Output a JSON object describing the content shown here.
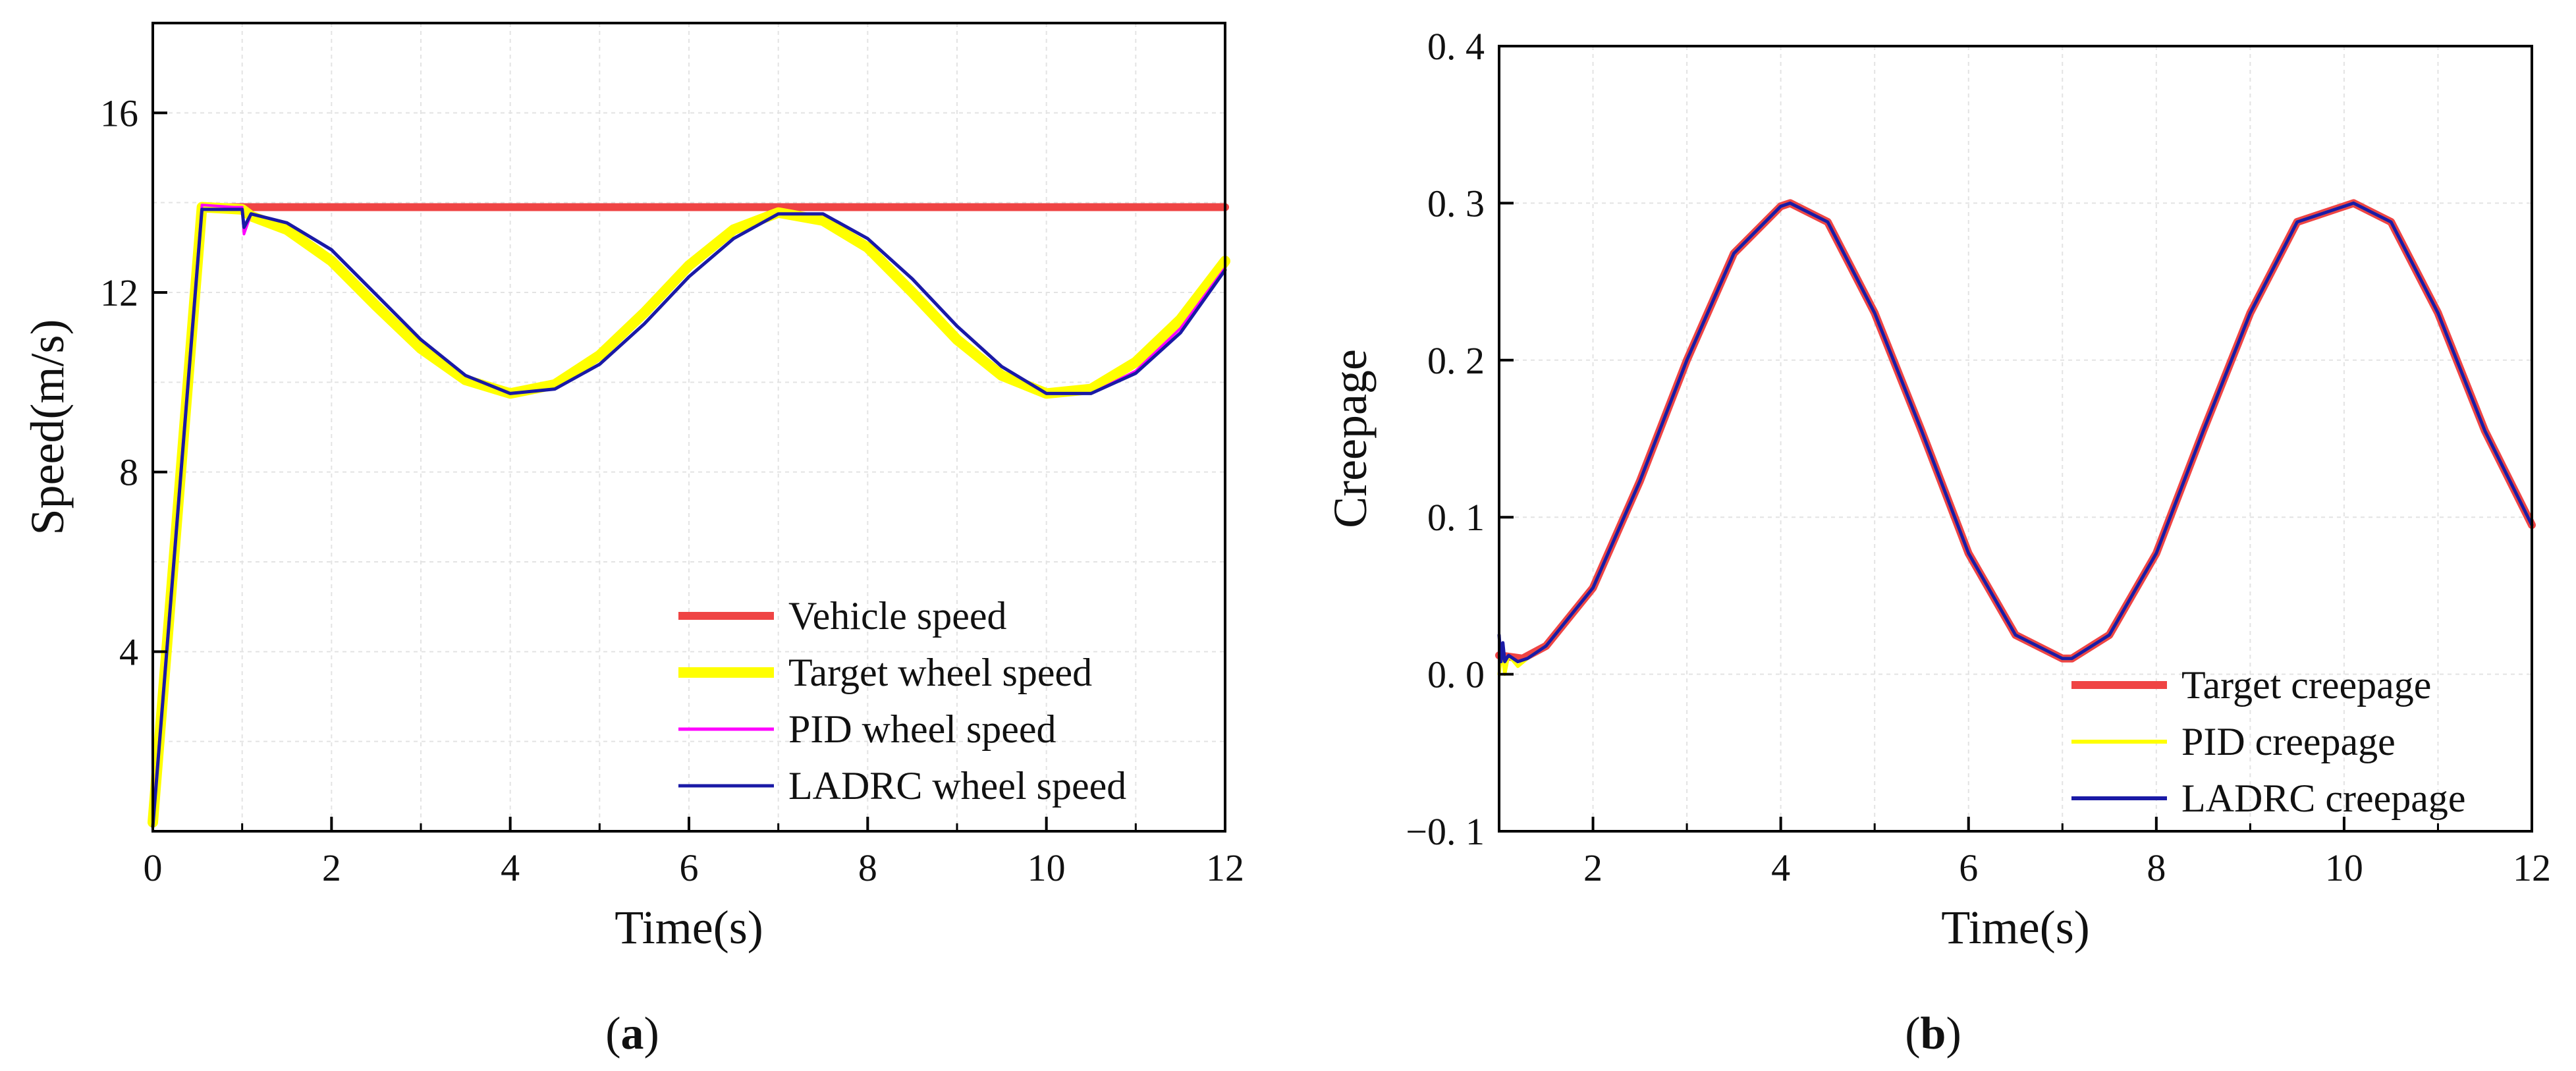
{
  "chart_data": [
    {
      "type": "line",
      "panel_label": "a",
      "xlabel": "Time(s)",
      "ylabel": "Speed(m/s)",
      "xlim": [
        0,
        12
      ],
      "ylim": [
        0,
        18
      ],
      "grid": true,
      "legend_position": "bottom-right",
      "xticks": [
        0,
        2,
        4,
        6,
        8,
        10,
        12
      ],
      "xtick_labels": [
        "0",
        "2",
        "4",
        "6",
        "8",
        "10",
        "12"
      ],
      "yticks": [
        4,
        8,
        12,
        16
      ],
      "ytick_labels": [
        "4",
        "8",
        "12",
        "16"
      ],
      "series": [
        {
          "name": "Vehicle speed",
          "color": "#ef4444",
          "x": [
            0.6,
            1.0,
            2.0,
            4.0,
            6.0,
            8.0,
            10.0,
            12.0
          ],
          "y": [
            13.9,
            13.9,
            13.9,
            13.9,
            13.9,
            13.9,
            13.9,
            13.9
          ]
        },
        {
          "name": "Target wheel speed",
          "color": "#ffff00",
          "x": [
            0,
            0.55,
            1.0,
            1.1,
            1.5,
            2.0,
            2.5,
            3.0,
            3.5,
            4.0,
            4.5,
            5.0,
            5.5,
            6.0,
            6.5,
            7.0,
            7.5,
            8.0,
            8.5,
            9.0,
            9.5,
            10.0,
            10.5,
            11.0,
            11.5,
            12.0
          ],
          "y": [
            0.2,
            13.9,
            13.85,
            13.7,
            13.4,
            12.7,
            11.7,
            10.75,
            10.05,
            9.75,
            9.95,
            10.6,
            11.55,
            12.6,
            13.4,
            13.78,
            13.6,
            13.0,
            12.0,
            10.95,
            10.15,
            9.75,
            9.85,
            10.45,
            11.4,
            12.7
          ]
        },
        {
          "name": "PID wheel speed",
          "color": "#ff00ff",
          "x": [
            0,
            0.55,
            0.9,
            1.0,
            1.02,
            1.1,
            1.5,
            2.0,
            2.5,
            3.0,
            3.5,
            4.0,
            4.5,
            5.0,
            5.5,
            6.0,
            6.5,
            7.0,
            7.5,
            8.0,
            8.5,
            9.0,
            9.5,
            10.0,
            10.5,
            11.0,
            11.5,
            12.0
          ],
          "y": [
            0.2,
            13.95,
            13.9,
            13.9,
            13.3,
            13.75,
            13.55,
            12.95,
            11.95,
            10.95,
            10.15,
            9.75,
            9.85,
            10.4,
            11.3,
            12.35,
            13.2,
            13.75,
            13.75,
            13.2,
            12.3,
            11.25,
            10.35,
            9.75,
            9.75,
            10.25,
            11.2,
            12.55
          ]
        },
        {
          "name": "LADRC wheel speed",
          "color": "#1a1aa6",
          "x": [
            0,
            0.55,
            0.9,
            1.0,
            1.02,
            1.1,
            1.5,
            2.0,
            2.5,
            3.0,
            3.5,
            4.0,
            4.5,
            5.0,
            5.5,
            6.0,
            6.5,
            7.0,
            7.5,
            8.0,
            8.5,
            9.0,
            9.5,
            10.0,
            10.5,
            11.0,
            11.5,
            12.0
          ],
          "y": [
            0.1,
            13.85,
            13.85,
            13.85,
            13.45,
            13.75,
            13.55,
            12.95,
            11.95,
            10.95,
            10.15,
            9.75,
            9.85,
            10.4,
            11.3,
            12.35,
            13.2,
            13.75,
            13.75,
            13.2,
            12.3,
            11.25,
            10.35,
            9.75,
            9.75,
            10.2,
            11.1,
            12.5
          ]
        }
      ]
    },
    {
      "type": "line",
      "panel_label": "b",
      "xlabel": "Time(s)",
      "ylabel": "Creepage",
      "xlim": [
        1,
        12
      ],
      "ylim": [
        -0.1,
        0.4
      ],
      "grid": true,
      "legend_position": "bottom-right",
      "xticks": [
        2,
        4,
        6,
        8,
        10,
        12
      ],
      "xtick_labels": [
        "2",
        "4",
        "6",
        "8",
        "10",
        "12"
      ],
      "yticks": [
        -0.1,
        0.0,
        0.1,
        0.2,
        0.3,
        0.4
      ],
      "ytick_labels": [
        "−0. 1",
        "0. 0",
        "0. 1",
        "0. 2",
        "0. 3",
        "0. 4"
      ],
      "series": [
        {
          "name": "Target creepage",
          "color": "#ef4444",
          "x": [
            1.0,
            1.25,
            1.5,
            2.0,
            2.5,
            3.0,
            3.5,
            4.0,
            4.1,
            4.5,
            5.0,
            5.5,
            6.0,
            6.5,
            7.0,
            7.1,
            7.5,
            8.0,
            8.5,
            9.0,
            9.5,
            10.0,
            10.1,
            10.5,
            11.0,
            11.5,
            12.0
          ],
          "y": [
            0.012,
            0.01,
            0.018,
            0.055,
            0.123,
            0.2,
            0.268,
            0.298,
            0.3,
            0.288,
            0.23,
            0.155,
            0.077,
            0.025,
            0.01,
            0.01,
            0.025,
            0.077,
            0.155,
            0.23,
            0.288,
            0.298,
            0.3,
            0.288,
            0.23,
            0.155,
            0.095
          ]
        },
        {
          "name": "PID creepage",
          "color": "#ffff00",
          "x": [
            1.0,
            1.03,
            1.06,
            1.1,
            1.2,
            1.3,
            1.5,
            2.0,
            2.5,
            3.0,
            3.5,
            4.0,
            4.1,
            4.5,
            5.0,
            5.5,
            6.0,
            6.5,
            7.0,
            7.1,
            7.5,
            8.0,
            8.5,
            9.0,
            9.5,
            10.0,
            10.1,
            10.5,
            11.0,
            11.5,
            12.0
          ],
          "y": [
            0.0,
            0.015,
            0.0,
            0.012,
            0.005,
            0.01,
            0.018,
            0.055,
            0.123,
            0.2,
            0.268,
            0.298,
            0.3,
            0.288,
            0.23,
            0.155,
            0.077,
            0.025,
            0.01,
            0.01,
            0.025,
            0.077,
            0.155,
            0.23,
            0.288,
            0.298,
            0.3,
            0.288,
            0.23,
            0.155,
            0.095
          ]
        },
        {
          "name": "LADRC creepage",
          "color": "#1a1aa6",
          "x": [
            1.0,
            1.02,
            1.04,
            1.06,
            1.1,
            1.2,
            1.3,
            1.5,
            2.0,
            2.5,
            3.0,
            3.5,
            4.0,
            4.1,
            4.5,
            5.0,
            5.5,
            6.0,
            6.5,
            7.0,
            7.1,
            7.5,
            8.0,
            8.5,
            9.0,
            9.5,
            10.0,
            10.1,
            10.5,
            11.0,
            11.5,
            12.0
          ],
          "y": [
            0.025,
            0.008,
            0.02,
            0.008,
            0.012,
            0.008,
            0.01,
            0.018,
            0.055,
            0.123,
            0.2,
            0.268,
            0.298,
            0.3,
            0.288,
            0.23,
            0.155,
            0.077,
            0.025,
            0.01,
            0.01,
            0.025,
            0.077,
            0.155,
            0.23,
            0.288,
            0.298,
            0.3,
            0.288,
            0.23,
            0.155,
            0.095
          ]
        }
      ]
    }
  ],
  "captions": {
    "a": "(a)",
    "b": "(b)"
  }
}
